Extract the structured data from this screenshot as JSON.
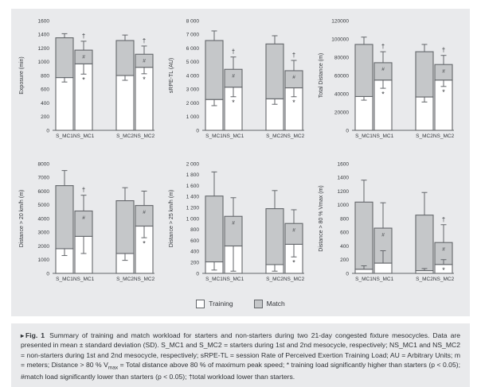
{
  "colors": {
    "panel_bg": "#e9eaec",
    "training_fill": "#ffffff",
    "match_fill": "#c5c7c9",
    "bar_border": "#63666a",
    "error_bar": "#63666a",
    "text": "#323539"
  },
  "legend": {
    "items": [
      {
        "label": "Training",
        "swatch": "#ffffff"
      },
      {
        "label": "Match",
        "swatch": "#c5c7c9"
      }
    ]
  },
  "caption": {
    "marker": "▸",
    "fig_label": "Fig. 1",
    "segments": [
      {
        "text": "Summary of training and match workload for starters and non-starters during two 21-day congested fixture mesocycles. Data are presented in mean ± standard deviation (SD). S_MC1 and S_MC2 = starters during 1st and 2nd mesocycle, respectively; NS_MC1 and NS_MC2 = non-starters during 1st and 2nd mesocycle, respectively; sRPE-TL = session Rate of Perceived Exertion Training Load; AU = Arbitrary Units; m = meters; Distance > 80 % V",
        "sub": false
      },
      {
        "text": "max",
        "sub": true
      },
      {
        "text": " = Total distance above 80 % of maximum peak speed;  * training load significantly higher than starters (p < 0.05); #match load significantly lower than starters (p < 0.05); †total workload lower than starters.",
        "sub": false
      }
    ]
  },
  "chart_data": [
    {
      "type": "bar",
      "stacked": true,
      "ylabel": "Exposure (min)",
      "ylim": [
        0,
        1600
      ],
      "ytick_labels": [
        "0",
        "200",
        "400",
        "600",
        "800",
        "1000",
        "1200",
        "1400",
        "1600"
      ],
      "categories": [
        "S_MC1",
        "NS_MC1",
        "S_MC2",
        "NS_MC2"
      ],
      "training_whisker": "down",
      "bars": [
        {
          "category": "S_MC1",
          "training": 770,
          "match": 580,
          "sd_total": 60,
          "sd_training": 65,
          "symbols": []
        },
        {
          "category": "NS_MC1",
          "training": 970,
          "match": 200,
          "sd_total": 130,
          "sd_training": 150,
          "symbols": [
            "dagger",
            "hash",
            "star"
          ]
        },
        {
          "category": "S_MC2",
          "training": 800,
          "match": 510,
          "sd_total": 80,
          "sd_training": 70,
          "symbols": []
        },
        {
          "category": "NS_MC2",
          "training": 920,
          "match": 190,
          "sd_total": 120,
          "sd_training": 95,
          "symbols": [
            "dagger",
            "hash",
            "star"
          ]
        }
      ]
    },
    {
      "type": "bar",
      "stacked": true,
      "ylabel": "sRPE-TL (AU)",
      "ylim": [
        0,
        8000
      ],
      "ytick_labels": [
        "0",
        "1 000",
        "2 000",
        "3 000",
        "4 000",
        "5 000",
        "6 000",
        "7 000",
        "8 000"
      ],
      "categories": [
        "S_MC1",
        "NS_MC1",
        "S_MC2",
        "NS_MC2"
      ],
      "training_whisker": "down",
      "bars": [
        {
          "category": "S_MC1",
          "training": 2250,
          "match": 4300,
          "sd_total": 700,
          "sd_training": 450,
          "symbols": []
        },
        {
          "category": "NS_MC1",
          "training": 3150,
          "match": 1300,
          "sd_total": 900,
          "sd_training": 700,
          "symbols": [
            "dagger",
            "hash",
            "star"
          ]
        },
        {
          "category": "S_MC2",
          "training": 2300,
          "match": 4000,
          "sd_total": 600,
          "sd_training": 400,
          "symbols": []
        },
        {
          "category": "NS_MC2",
          "training": 3100,
          "match": 1250,
          "sd_total": 750,
          "sd_training": 650,
          "symbols": [
            "dagger",
            "hash",
            "star"
          ]
        }
      ]
    },
    {
      "type": "bar",
      "stacked": true,
      "ylabel": "Total Distance (m)",
      "ylim": [
        0,
        120000
      ],
      "ytick_labels": [
        "0",
        "20000",
        "40000",
        "60000",
        "80000",
        "100000",
        "120000"
      ],
      "categories": [
        "S_MC1",
        "NS_MC1",
        "S_MC2",
        "NS_MC2"
      ],
      "training_whisker": "down",
      "bars": [
        {
          "category": "S_MC1",
          "training": 37000,
          "match": 57000,
          "sd_total": 8000,
          "sd_training": 4000,
          "symbols": []
        },
        {
          "category": "NS_MC1",
          "training": 55000,
          "match": 19000,
          "sd_total": 12000,
          "sd_training": 9000,
          "symbols": [
            "dagger",
            "hash",
            "star"
          ]
        },
        {
          "category": "S_MC2",
          "training": 36500,
          "match": 49500,
          "sd_total": 8000,
          "sd_training": 5500,
          "symbols": []
        },
        {
          "category": "NS_MC2",
          "training": 55000,
          "match": 17000,
          "sd_total": 10000,
          "sd_training": 7000,
          "symbols": [
            "dagger",
            "hash",
            "star"
          ]
        }
      ]
    },
    {
      "type": "bar",
      "stacked": true,
      "ylabel": "Distance > 20 km/h (m)",
      "ylim": [
        0,
        8000
      ],
      "ytick_labels": [
        "0",
        "1000",
        "2000",
        "3000",
        "4000",
        "5000",
        "6000",
        "7000",
        "8000"
      ],
      "categories": [
        "S_MC1",
        "NS_MC1",
        "S_MC2",
        "NS_MC2"
      ],
      "training_whisker": "down",
      "bars": [
        {
          "category": "S_MC1",
          "training": 1800,
          "match": 4600,
          "sd_total": 1100,
          "sd_training": 500,
          "symbols": []
        },
        {
          "category": "NS_MC1",
          "training": 2700,
          "match": 1850,
          "sd_total": 1150,
          "sd_training": 1250,
          "symbols": [
            "dagger",
            "hash"
          ]
        },
        {
          "category": "S_MC2",
          "training": 1450,
          "match": 3850,
          "sd_total": 950,
          "sd_training": 500,
          "symbols": []
        },
        {
          "category": "NS_MC2",
          "training": 3450,
          "match": 1500,
          "sd_total": 1050,
          "sd_training": 850,
          "symbols": [
            "hash",
            "star"
          ]
        }
      ]
    },
    {
      "type": "bar",
      "stacked": true,
      "ylabel": "Distance > 25 km/h (m)",
      "ylim": [
        0,
        2000
      ],
      "ytick_labels": [
        "0",
        "200",
        "400",
        "600",
        "800",
        "1 000",
        "1 200",
        "1 400",
        "1 600",
        "1 800",
        "2 000"
      ],
      "categories": [
        "S_MC1",
        "NS_MC1",
        "S_MC2",
        "NS_MC2"
      ],
      "training_whisker": "down",
      "bars": [
        {
          "category": "S_MC1",
          "training": 210,
          "match": 1200,
          "sd_total": 440,
          "sd_training": 150,
          "symbols": []
        },
        {
          "category": "NS_MC1",
          "training": 500,
          "match": 540,
          "sd_total": 340,
          "sd_training": 460,
          "symbols": [
            "hash"
          ]
        },
        {
          "category": "S_MC2",
          "training": 160,
          "match": 1020,
          "sd_total": 330,
          "sd_training": 120,
          "symbols": []
        },
        {
          "category": "NS_MC2",
          "training": 530,
          "match": 380,
          "sd_total": 250,
          "sd_training": 230,
          "symbols": [
            "hash",
            "star"
          ]
        }
      ]
    },
    {
      "type": "bar",
      "stacked": true,
      "ylabel": "Distance > 80 % Vmax (m)",
      "ylim": [
        0,
        1600
      ],
      "ytick_labels": [
        "0",
        "200",
        "400",
        "600",
        "800",
        "1000",
        "1200",
        "1400",
        "1600"
      ],
      "categories": [
        "S_MC1",
        "NS_MC1",
        "S_MC2",
        "NS_MC2"
      ],
      "training_whisker": "up",
      "bars": [
        {
          "category": "S_MC1",
          "training": 60,
          "match": 980,
          "sd_total": 320,
          "sd_training": 50,
          "symbols": []
        },
        {
          "category": "NS_MC1",
          "training": 150,
          "match": 510,
          "sd_total": 370,
          "sd_training": 180,
          "symbols": [
            "hash"
          ]
        },
        {
          "category": "S_MC2",
          "training": 40,
          "match": 810,
          "sd_total": 330,
          "sd_training": 30,
          "symbols": []
        },
        {
          "category": "NS_MC2",
          "training": 130,
          "match": 320,
          "sd_total": 260,
          "sd_training": 70,
          "symbols": [
            "dagger",
            "hash",
            "star"
          ]
        }
      ]
    }
  ]
}
